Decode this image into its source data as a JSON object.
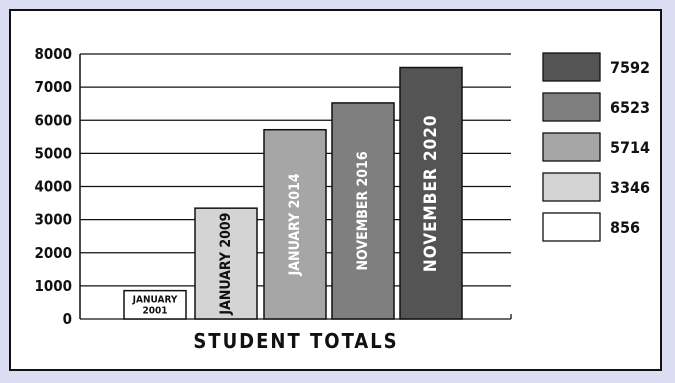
{
  "chart_data": {
    "type": "bar",
    "title": "STUDENT TOTALS",
    "categories": [
      "JANUARY 2001",
      "JANUARY 2009",
      "JANUARY 2014",
      "NOVEMBER 2016",
      "NOVEMBER 2020"
    ],
    "values": [
      856,
      3346,
      5714,
      6523,
      7592
    ],
    "bar_labels": [
      [
        "JANUARY",
        "2001"
      ],
      [
        "JANUARY 2009"
      ],
      [
        "JANUARY 2014"
      ],
      [
        "NOVEMBER 2016"
      ],
      [
        "NOVEMBER 2020"
      ]
    ],
    "colors": [
      "#ffffff",
      "#d4d4d4",
      "#a6a6a6",
      "#7f7f7f",
      "#545454"
    ],
    "ylim": [
      0,
      8000
    ],
    "yticks": [
      0,
      1000,
      2000,
      3000,
      4000,
      5000,
      6000,
      7000,
      8000
    ],
    "grid": true,
    "legend": {
      "placement": "right",
      "entries": [
        {
          "value": "7592",
          "color": "#545454"
        },
        {
          "value": "6523",
          "color": "#7f7f7f"
        },
        {
          "value": "5714",
          "color": "#a6a6a6"
        },
        {
          "value": "3346",
          "color": "#d4d4d4"
        },
        {
          "value": "856",
          "color": "#ffffff"
        }
      ]
    }
  }
}
